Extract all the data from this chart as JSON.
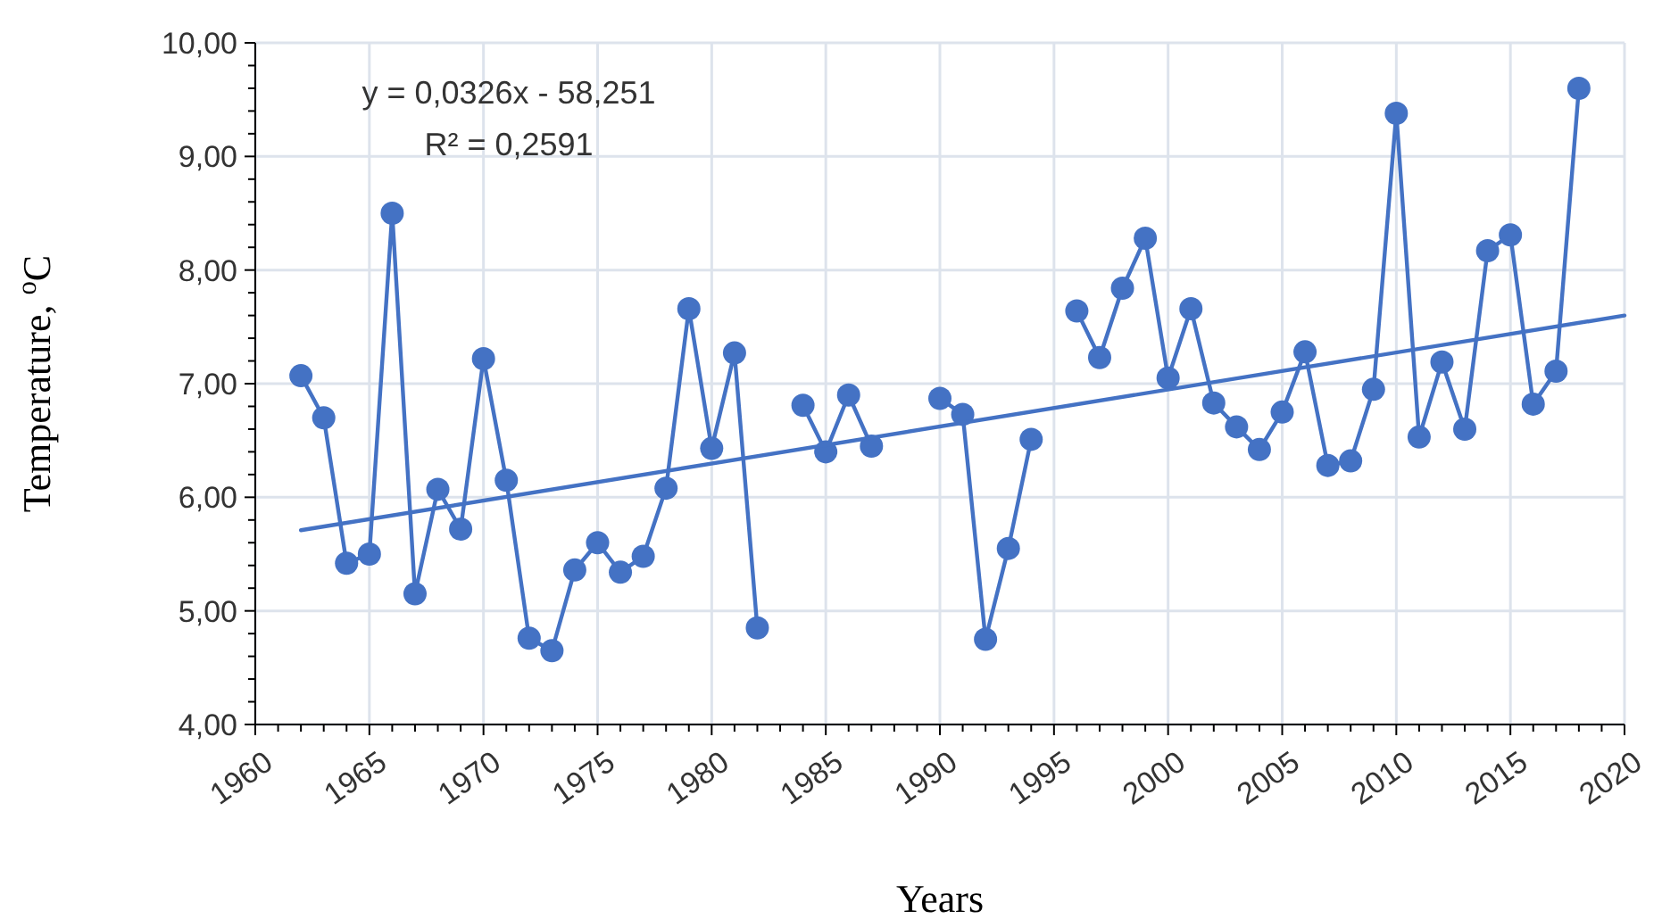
{
  "chart_data": {
    "type": "line",
    "xlabel": "Years",
    "ylabel": "Temperature, $^{o}$C",
    "annotations": [
      "y = 0,0326x - 58,251",
      "R² = 0,2591"
    ],
    "x": [
      1962,
      1963,
      1964,
      1965,
      1966,
      1967,
      1968,
      1969,
      1970,
      1971,
      1972,
      1973,
      1974,
      1975,
      1976,
      1977,
      1978,
      1979,
      1980,
      1981,
      1982,
      1983,
      1984,
      1985,
      1986,
      1987,
      1988,
      1989,
      1990,
      1991,
      1992,
      1993,
      1994,
      1995,
      1996,
      1997,
      1998,
      1999,
      2000,
      2001,
      2002,
      2003,
      2004,
      2005,
      2006,
      2007,
      2008,
      2009,
      2010,
      2011,
      2012,
      2013,
      2014,
      2015,
      2016,
      2017,
      2018
    ],
    "series": [
      {
        "color": "#4472c4",
        "marker": "circle",
        "values": [
          7.07,
          6.7,
          5.42,
          5.5,
          8.5,
          5.15,
          6.07,
          5.72,
          7.22,
          6.15,
          4.76,
          4.65,
          5.36,
          5.6,
          5.34,
          5.48,
          6.08,
          7.66,
          6.43,
          7.27,
          4.85,
          null,
          6.81,
          6.4,
          6.9,
          6.45,
          null,
          null,
          6.87,
          6.73,
          4.75,
          5.55,
          6.51,
          null,
          7.64,
          7.23,
          7.84,
          8.28,
          7.05,
          7.66,
          6.83,
          6.62,
          6.42,
          6.75,
          7.28,
          6.28,
          6.32,
          6.95,
          9.38,
          6.53,
          7.19,
          6.6,
          8.17,
          8.31,
          6.82,
          7.11,
          9.6
        ]
      },
      {
        "color": "#4472c4",
        "marker": "none",
        "x": [
          1962,
          2020
        ],
        "values": [
          5.71,
          7.6
        ]
      }
    ],
    "xlim": [
      1960,
      2020
    ],
    "xticks": [
      1960,
      {
        "value": 1961,
        "label": null
      },
      {
        "value": 1962,
        "label": null
      },
      {
        "value": 1963,
        "label": null
      },
      {
        "value": 1964,
        "label": null
      },
      1965,
      {
        "value": 1966,
        "label": null
      },
      {
        "value": 1967,
        "label": null
      },
      {
        "value": 1968,
        "label": null
      },
      {
        "value": 1969,
        "label": null
      },
      1970,
      {
        "value": 1971,
        "label": null
      },
      {
        "value": 1972,
        "label": null
      },
      {
        "value": 1973,
        "label": null
      },
      {
        "value": 1974,
        "label": null
      },
      1975,
      {
        "value": 1976,
        "label": null
      },
      {
        "value": 1977,
        "label": null
      },
      {
        "value": 1978,
        "label": null
      },
      {
        "value": 1979,
        "label": null
      },
      1980,
      {
        "value": 1981,
        "label": null
      },
      {
        "value": 1982,
        "label": null
      },
      {
        "value": 1983,
        "label": null
      },
      {
        "value": 1984,
        "label": null
      },
      1985,
      {
        "value": 1986,
        "label": null
      },
      {
        "value": 1987,
        "label": null
      },
      {
        "value": 1988,
        "label": null
      },
      {
        "value": 1989,
        "label": null
      },
      1990,
      {
        "value": 1991,
        "label": null
      },
      {
        "value": 1992,
        "label": null
      },
      {
        "value": 1993,
        "label": null
      },
      {
        "value": 1994,
        "label": null
      },
      1995,
      {
        "value": 1996,
        "label": null
      },
      {
        "value": 1997,
        "label": null
      },
      {
        "value": 1998,
        "label": null
      },
      {
        "value": 1999,
        "label": null
      },
      2000,
      {
        "value": 2001,
        "label": null
      },
      {
        "value": 2002,
        "label": null
      },
      {
        "value": 2003,
        "label": null
      },
      {
        "value": 2004,
        "label": null
      },
      2005,
      {
        "value": 2006,
        "label": null
      },
      {
        "value": 2007,
        "label": null
      },
      {
        "value": 2008,
        "label": null
      },
      {
        "value": 2009,
        "label": null
      },
      2010,
      {
        "value": 2011,
        "label": null
      },
      {
        "value": 2012,
        "label": null
      },
      {
        "value": 2013,
        "label": null
      },
      {
        "value": 2014,
        "label": null
      },
      2015,
      {
        "value": 2016,
        "label": null
      },
      {
        "value": 2017,
        "label": null
      },
      {
        "value": 2018,
        "label": null
      },
      {
        "value": 2019,
        "label": null
      },
      2020
    ],
    "ylim": [
      4,
      10
    ],
    "yticks": [
      {
        "value": 4,
        "label": "4,00"
      },
      {
        "value": 4.2,
        "label": null
      },
      {
        "value": 4.4,
        "label": null
      },
      {
        "value": 4.6,
        "label": null
      },
      {
        "value": 4.8,
        "label": null
      },
      {
        "value": 5,
        "label": "5,00"
      },
      {
        "value": 5.2,
        "label": null
      },
      {
        "value": 5.4,
        "label": null
      },
      {
        "value": 5.6,
        "label": null
      },
      {
        "value": 5.8,
        "label": null
      },
      {
        "value": 6,
        "label": "6,00"
      },
      {
        "value": 6.2,
        "label": null
      },
      {
        "value": 6.4,
        "label": null
      },
      {
        "value": 6.6,
        "label": null
      },
      {
        "value": 6.8,
        "label": null
      },
      {
        "value": 7,
        "label": "7,00"
      },
      {
        "value": 7.2,
        "label": null
      },
      {
        "value": 7.4,
        "label": null
      },
      {
        "value": 7.6,
        "label": null
      },
      {
        "value": 7.8,
        "label": null
      },
      {
        "value": 8,
        "label": "8,00"
      },
      {
        "value": 8.2,
        "label": null
      },
      {
        "value": 8.4,
        "label": null
      },
      {
        "value": 8.6,
        "label": null
      },
      {
        "value": 8.8,
        "label": null
      },
      {
        "value": 9,
        "label": "9,00"
      },
      {
        "value": 9.2,
        "label": null
      },
      {
        "value": 9.4,
        "label": null
      },
      {
        "value": 9.6,
        "label": null
      },
      {
        "value": 9.8,
        "label": null
      },
      {
        "value": 10,
        "label": "10,00"
      }
    ],
    "grid": true
  }
}
